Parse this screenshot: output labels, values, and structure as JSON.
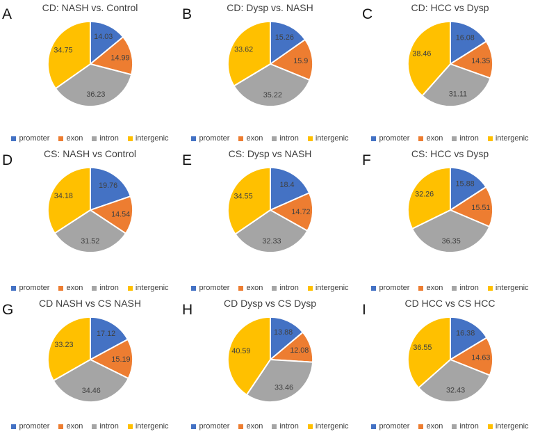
{
  "figure": {
    "categories": [
      "promoter",
      "exon",
      "intron",
      "intergenic"
    ],
    "colors": [
      "#4472C4",
      "#ED7D31",
      "#A5A5A5",
      "#FFC000"
    ],
    "label_color": "#404040",
    "title_color": "#3f3f3f"
  },
  "chart_data": [
    {
      "type": "pie",
      "panel": "A",
      "title": "CD: NASH vs. Control",
      "categories": [
        "promoter",
        "exon",
        "intron",
        "intergenic"
      ],
      "values": [
        14.03,
        14.99,
        36.23,
        34.75
      ],
      "legend_position": "bottom"
    },
    {
      "type": "pie",
      "panel": "B",
      "title": "CD: Dysp vs. NASH",
      "categories": [
        "promoter",
        "exon",
        "intron",
        "intergenic"
      ],
      "values": [
        15.26,
        15.9,
        35.22,
        33.62
      ],
      "legend_position": "bottom"
    },
    {
      "type": "pie",
      "panel": "C",
      "title": "CD: HCC vs Dysp",
      "categories": [
        "promoter",
        "exon",
        "intron",
        "intergenic"
      ],
      "values": [
        16.08,
        14.35,
        31.11,
        38.46
      ],
      "legend_position": "bottom"
    },
    {
      "type": "pie",
      "panel": "D",
      "title": "CS: NASH vs Control",
      "categories": [
        "promoter",
        "exon",
        "intron",
        "intergenic"
      ],
      "values": [
        19.76,
        14.54,
        31.52,
        34.18
      ],
      "legend_position": "bottom"
    },
    {
      "type": "pie",
      "panel": "E",
      "title": "CS: Dysp vs NASH",
      "categories": [
        "promoter",
        "exon",
        "intron",
        "intergenic"
      ],
      "values": [
        18.4,
        14.72,
        32.33,
        34.55
      ],
      "legend_position": "bottom"
    },
    {
      "type": "pie",
      "panel": "F",
      "title": "CS: HCC vs Dysp",
      "categories": [
        "promoter",
        "exon",
        "intron",
        "intergenic"
      ],
      "values": [
        15.88,
        15.51,
        36.35,
        32.26
      ],
      "legend_position": "bottom"
    },
    {
      "type": "pie",
      "panel": "G",
      "title": "CD NASH vs CS NASH",
      "categories": [
        "promoter",
        "exon",
        "intron",
        "intergenic"
      ],
      "values": [
        17.12,
        15.19,
        34.46,
        33.23
      ],
      "legend_position": "bottom"
    },
    {
      "type": "pie",
      "panel": "H",
      "title": "CD Dysp vs CS Dysp",
      "categories": [
        "promoter",
        "exon",
        "intron",
        "intergenic"
      ],
      "values": [
        13.88,
        12.08,
        33.46,
        40.59
      ],
      "legend_position": "bottom"
    },
    {
      "type": "pie",
      "panel": "I",
      "title": "CD HCC vs CS HCC",
      "categories": [
        "promoter",
        "exon",
        "intron",
        "intergenic"
      ],
      "values": [
        16.38,
        14.63,
        32.43,
        36.55
      ],
      "legend_position": "bottom"
    }
  ]
}
